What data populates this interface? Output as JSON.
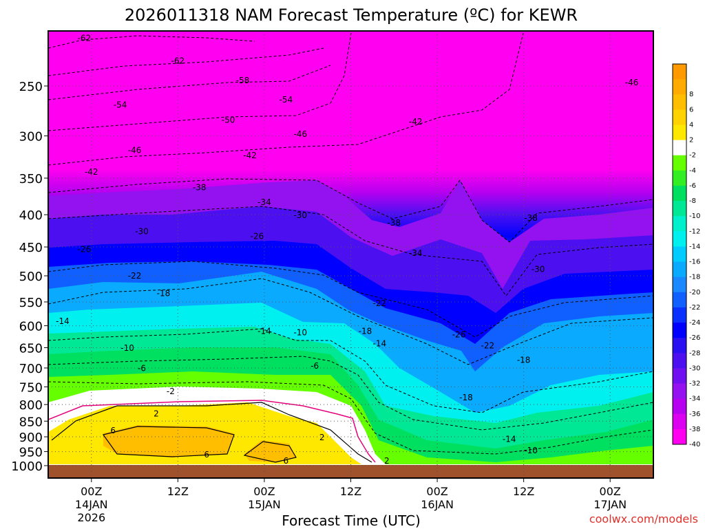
{
  "title": "2026011318 NAM Forecast Temperature (ºC) for KEWR",
  "xlabel": "Forecast Time (UTC)",
  "watermark": "coolwx.com/models",
  "chart_data": {
    "type": "heatmap",
    "title": "2026011318 NAM Forecast Temperature (ºC) for KEWR",
    "xlabel": "Forecast Time (UTC)",
    "ylabel": "",
    "y_axis": {
      "scale": "log-pressure",
      "units": "hPa",
      "range": [
        1010,
        200
      ],
      "ticks": [
        250,
        300,
        350,
        400,
        450,
        500,
        550,
        600,
        650,
        700,
        750,
        800,
        850,
        900,
        950,
        1000
      ]
    },
    "x_axis": {
      "units": "hours since 2026-01-13 18Z",
      "range": [
        0,
        84
      ],
      "ticks": [
        {
          "hour": 6,
          "lines": [
            "00Z",
            "14JAN",
            "2026"
          ]
        },
        {
          "hour": 18,
          "lines": [
            "12Z"
          ]
        },
        {
          "hour": 30,
          "lines": [
            "00Z",
            "15JAN"
          ]
        },
        {
          "hour": 42,
          "lines": [
            "12Z"
          ]
        },
        {
          "hour": 54,
          "lines": [
            "00Z",
            "16JAN"
          ]
        },
        {
          "hour": 66,
          "lines": [
            "12Z"
          ]
        },
        {
          "hour": 78,
          "lines": [
            "00Z",
            "17JAN"
          ]
        }
      ]
    },
    "grid": true,
    "colorbar": {
      "position": "right",
      "levels": [
        {
          "label": "",
          "color": "#ff9900"
        },
        {
          "label": "8",
          "color": "#ffab00"
        },
        {
          "label": "6",
          "color": "#ffbf00"
        },
        {
          "label": "4",
          "color": "#ffd200"
        },
        {
          "label": "2",
          "color": "#ffe800"
        },
        {
          "label": "-2",
          "color": "#ffffff"
        },
        {
          "label": "-4",
          "color": "#66ff00"
        },
        {
          "label": "-6",
          "color": "#33ee22"
        },
        {
          "label": "-8",
          "color": "#00e060"
        },
        {
          "label": "-10",
          "color": "#00e896"
        },
        {
          "label": "-12",
          "color": "#00f0cc"
        },
        {
          "label": "-14",
          "color": "#00f0f0"
        },
        {
          "label": "-16",
          "color": "#00ccff"
        },
        {
          "label": "-18",
          "color": "#0aaaff"
        },
        {
          "label": "-20",
          "color": "#1a88ff"
        },
        {
          "label": "-22",
          "color": "#1060ff"
        },
        {
          "label": "-24",
          "color": "#0a30ff"
        },
        {
          "label": "-26",
          "color": "#0000ff"
        },
        {
          "label": "-28",
          "color": "#2810f0"
        },
        {
          "label": "-30",
          "color": "#4c10f0"
        },
        {
          "label": "-32",
          "color": "#7010f0"
        },
        {
          "label": "-34",
          "color": "#9412f0"
        },
        {
          "label": "-36",
          "color": "#b800f0"
        },
        {
          "label": "-38",
          "color": "#dc00f0"
        },
        {
          "label": "-40",
          "color": "#ff00f0"
        }
      ]
    },
    "contour_labels": [
      {
        "text": "-62",
        "t": 5,
        "p": 210
      },
      {
        "text": "-62",
        "t": 18,
        "p": 228
      },
      {
        "text": "-58",
        "t": 27,
        "p": 245
      },
      {
        "text": "-54",
        "t": 10,
        "p": 268
      },
      {
        "text": "-54",
        "t": 33,
        "p": 263
      },
      {
        "text": "-50",
        "t": 25,
        "p": 283
      },
      {
        "text": "-46",
        "t": 12,
        "p": 316
      },
      {
        "text": "-46",
        "t": 35,
        "p": 298
      },
      {
        "text": "-42",
        "t": 28,
        "p": 322
      },
      {
        "text": "-42",
        "t": 51,
        "p": 285
      },
      {
        "text": "-42",
        "t": 6,
        "p": 342
      },
      {
        "text": "-46",
        "t": 81,
        "p": 247
      },
      {
        "text": "-38",
        "t": 21,
        "p": 362
      },
      {
        "text": "-34",
        "t": 30,
        "p": 382
      },
      {
        "text": "-30",
        "t": 35,
        "p": 401
      },
      {
        "text": "-30",
        "t": 13,
        "p": 425
      },
      {
        "text": "-38",
        "t": 48,
        "p": 412
      },
      {
        "text": "-38",
        "t": 67,
        "p": 405
      },
      {
        "text": "-26",
        "t": 29,
        "p": 433
      },
      {
        "text": "-26",
        "t": 5,
        "p": 454
      },
      {
        "text": "-34",
        "t": 51,
        "p": 460
      },
      {
        "text": "-30",
        "t": 68,
        "p": 488
      },
      {
        "text": "-22",
        "t": 12,
        "p": 500
      },
      {
        "text": "-18",
        "t": 16,
        "p": 533
      },
      {
        "text": "-22",
        "t": 46,
        "p": 553
      },
      {
        "text": "-14",
        "t": 2,
        "p": 590
      },
      {
        "text": "-14",
        "t": 30,
        "p": 612
      },
      {
        "text": "-10",
        "t": 35,
        "p": 615
      },
      {
        "text": "-18",
        "t": 44,
        "p": 612
      },
      {
        "text": "-26",
        "t": 57,
        "p": 620
      },
      {
        "text": "-14",
        "t": 46,
        "p": 640
      },
      {
        "text": "-22",
        "t": 61,
        "p": 645
      },
      {
        "text": "-10",
        "t": 11,
        "p": 651
      },
      {
        "text": "-18",
        "t": 66,
        "p": 680
      },
      {
        "text": "-6",
        "t": 13,
        "p": 701
      },
      {
        "text": "-6",
        "t": 37,
        "p": 695
      },
      {
        "text": "-2",
        "t": 17,
        "p": 762
      },
      {
        "text": "-18",
        "t": 58,
        "p": 780
      },
      {
        "text": "2",
        "t": 15,
        "p": 827
      },
      {
        "text": "6",
        "t": 9,
        "p": 880
      },
      {
        "text": "2",
        "t": 38,
        "p": 902
      },
      {
        "text": "-14",
        "t": 64,
        "p": 908
      },
      {
        "text": "6",
        "t": 22,
        "p": 961
      },
      {
        "text": "-10",
        "t": 67,
        "p": 946
      },
      {
        "text": "6",
        "t": 33,
        "p": 982
      },
      {
        "text": "2",
        "t": 47,
        "p": 982
      }
    ]
  }
}
